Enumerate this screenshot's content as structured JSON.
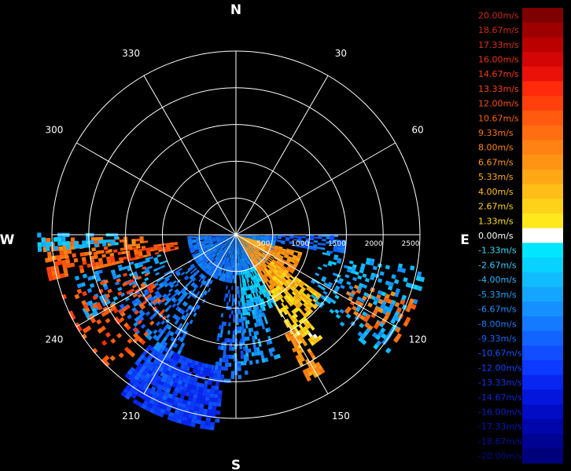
{
  "chart_data": {
    "type": "polar-heatmap",
    "cardinals": {
      "north": "N",
      "east": "E",
      "south": "S",
      "west": "W"
    },
    "azimuth_labels": [
      {
        "deg": 30,
        "label": "30"
      },
      {
        "deg": 60,
        "label": "60"
      },
      {
        "deg": 120,
        "label": "120"
      },
      {
        "deg": 150,
        "label": "150"
      },
      {
        "deg": 210,
        "label": "210"
      },
      {
        "deg": 240,
        "label": "240"
      },
      {
        "deg": 300,
        "label": "300"
      },
      {
        "deg": 330,
        "label": "330"
      }
    ],
    "range_rings": [
      500,
      1000,
      1500,
      2000,
      2500
    ],
    "range_max": 2500,
    "spoke_step_deg": 30,
    "scan_sector_deg": [
      90,
      270
    ],
    "colorbar": {
      "levels": [
        {
          "label": "20.00m/s",
          "color": "#7e0000",
          "text": "#d12a1a"
        },
        {
          "label": "18.67m/s",
          "color": "#9e0000",
          "text": "#d12a1a"
        },
        {
          "label": "17.33m/s",
          "color": "#bb0000",
          "text": "#e03018"
        },
        {
          "label": "16.00m/s",
          "color": "#d40505",
          "text": "#ee3216"
        },
        {
          "label": "14.67m/s",
          "color": "#ea1208",
          "text": "#f83a12"
        },
        {
          "label": "13.33m/s",
          "color": "#ff2a0a",
          "text": "#ff4210"
        },
        {
          "label": "12.00m/s",
          "color": "#ff400c",
          "text": "#ff5010"
        },
        {
          "label": "10.67m/s",
          "color": "#ff5a0e",
          "text": "#ff6210"
        },
        {
          "label": "9.33m/s",
          "color": "#ff6e10",
          "text": "#ff7414"
        },
        {
          "label": "8.00m/s",
          "color": "#ff8212",
          "text": "#ff8816"
        },
        {
          "label": "6.67m/s",
          "color": "#ff9414",
          "text": "#ff9a18"
        },
        {
          "label": "5.33m/s",
          "color": "#ffa816",
          "text": "#ffac1a"
        },
        {
          "label": "4.00m/s",
          "color": "#ffbe18",
          "text": "#ffc01c"
        },
        {
          "label": "2.67m/s",
          "color": "#ffd21a",
          "text": "#ffd21c"
        },
        {
          "label": "1.33m/s",
          "color": "#ffe81c",
          "text": "#ffe21c"
        },
        {
          "label": "0.00m/s",
          "color": "#ffffff",
          "text": "#ffffff"
        },
        {
          "label": "-1.33m/s",
          "color": "#00e6ff",
          "text": "#33ddff"
        },
        {
          "label": "-2.67m/s",
          "color": "#08d2ff",
          "text": "#33ccff"
        },
        {
          "label": "-4.00m/s",
          "color": "#10bcff",
          "text": "#2ab8ff"
        },
        {
          "label": "-5.33m/s",
          "color": "#14a6ff",
          "text": "#20a4ff"
        },
        {
          "label": "-6.67m/s",
          "color": "#1490ff",
          "text": "#1a90ff"
        },
        {
          "label": "-8.00m/s",
          "color": "#147aff",
          "text": "#167cff"
        },
        {
          "label": "-9.33m/s",
          "color": "#1264ff",
          "text": "#1468ff"
        },
        {
          "label": "-10.67m/s",
          "color": "#104eff",
          "text": "#1254ff"
        },
        {
          "label": "-12.00m/s",
          "color": "#0c3aff",
          "text": "#1044ff"
        },
        {
          "label": "-13.33m/s",
          "color": "#0826f0",
          "text": "#0e34ee"
        },
        {
          "label": "-14.67m/s",
          "color": "#0416dc",
          "text": "#0c28dc"
        },
        {
          "label": "-16.00m/s",
          "color": "#020cc4",
          "text": "#0a1ec8"
        },
        {
          "label": "-17.33m/s",
          "color": "#0006aa",
          "text": "#0816b4"
        },
        {
          "label": "-18.67m/s",
          "color": "#000292",
          "text": "#06109e"
        },
        {
          "label": "-20.00m/s",
          "color": "#00007c",
          "text": "#040c88"
        }
      ]
    },
    "echo_regions": [
      {
        "az": [
          92,
          180
        ],
        "r": [
          0,
          500
        ],
        "v": -7,
        "density": 0.97
      },
      {
        "az": [
          180,
          268
        ],
        "r": [
          0,
          650
        ],
        "v": -8,
        "density": 0.95
      },
      {
        "az": [
          105,
          150
        ],
        "r": [
          0,
          900
        ],
        "v": 6.5,
        "density": 0.9
      },
      {
        "az": [
          108,
          118
        ],
        "r": [
          0,
          420
        ],
        "v": 5,
        "density": 0.95
      },
      {
        "az": [
          125,
          140
        ],
        "r": [
          600,
          1450
        ],
        "v": 3.5,
        "density": 0.75
      },
      {
        "az": [
          140,
          150
        ],
        "r": [
          900,
          1800
        ],
        "v": 2.5,
        "density": 0.65
      },
      {
        "az": [
          147,
          153
        ],
        "r": [
          1400,
          2200
        ],
        "v": 7,
        "density": 0.55
      },
      {
        "az": [
          150,
          175
        ],
        "r": [
          500,
          1100
        ],
        "v": -3,
        "density": 0.7
      },
      {
        "az": [
          160,
          180
        ],
        "r": [
          900,
          1750
        ],
        "v": -6,
        "density": 0.45
      },
      {
        "az": [
          175,
          190
        ],
        "r": [
          700,
          2000
        ],
        "v": -9,
        "density": 0.4
      },
      {
        "az": [
          185,
          215
        ],
        "r": [
          1800,
          2650
        ],
        "v": -12,
        "density": 0.88
      },
      {
        "az": [
          200,
          218
        ],
        "r": [
          1900,
          2400
        ],
        "v": -11,
        "density": 0.7
      },
      {
        "az": [
          205,
          240
        ],
        "r": [
          700,
          1900
        ],
        "v": -8,
        "density": 0.4
      },
      {
        "az": [
          240,
          255
        ],
        "r": [
          1000,
          2300
        ],
        "v": -6,
        "density": 0.35
      },
      {
        "az": [
          256,
          262
        ],
        "r": [
          800,
          2600
        ],
        "v": 10.5,
        "density": 0.6
      },
      {
        "az": [
          262,
          268
        ],
        "r": [
          1200,
          2600
        ],
        "v": 9,
        "density": 0.55
      },
      {
        "az": [
          265,
          270
        ],
        "r": [
          1600,
          2650
        ],
        "v": -4,
        "density": 0.5
      },
      {
        "az": [
          220,
          250
        ],
        "r": [
          1300,
          2500
        ],
        "v": 11,
        "density": 0.22
      },
      {
        "az": [
          100,
          130
        ],
        "r": [
          1200,
          2600
        ],
        "v": -5,
        "density": 0.3
      },
      {
        "az": [
          110,
          125
        ],
        "r": [
          1700,
          2600
        ],
        "v": 9,
        "density": 0.25
      },
      {
        "az": [
          90,
          100
        ],
        "r": [
          400,
          1500
        ],
        "v": -9,
        "density": 0.6
      }
    ]
  }
}
